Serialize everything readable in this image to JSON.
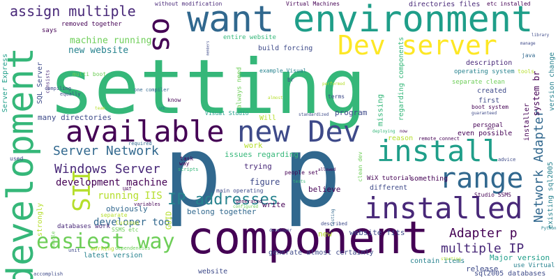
{
  "colors": {
    "dark_purple": "#440154",
    "purple": "#482878",
    "indigo": "#3e4a89",
    "blue": "#31688e",
    "steel": "#26828e",
    "teal": "#1f9e89",
    "green": "#35b779",
    "light_green": "#6ece58",
    "lime": "#b5de2b",
    "yellow": "#fde725"
  },
  "words": [
    {
      "text": "setting",
      "color": "green",
      "rotation": 0
    },
    {
      "text": "p",
      "color": "blue",
      "rotation": 0
    },
    {
      "text": "p",
      "color": "blue",
      "rotation": 0
    },
    {
      "text": "component",
      "color": "dark_purple",
      "rotation": 0
    },
    {
      "text": "want",
      "color": "blue",
      "rotation": 0
    },
    {
      "text": "environment",
      "color": "teal",
      "rotation": 0
    },
    {
      "text": "development",
      "color": "green",
      "rotation": 270
    },
    {
      "text": "available",
      "color": "dark_purple",
      "rotation": 0
    },
    {
      "text": "new Dev",
      "color": "indigo",
      "rotation": 0
    },
    {
      "text": "install",
      "color": "teal",
      "rotation": 0
    },
    {
      "text": "installed",
      "color": "purple",
      "rotation": 0
    },
    {
      "text": "Dev server",
      "color": "yellow",
      "rotation": 0
    },
    {
      "text": "range",
      "color": "blue",
      "rotation": 0
    },
    {
      "text": "os",
      "color": "dark_purple",
      "rotation": 90
    },
    {
      "text": "IIS",
      "color": "lime",
      "rotation": 90
    },
    {
      "text": "easiest way",
      "color": "light_green",
      "rotation": 0
    },
    {
      "text": "assign multiple",
      "color": "purple",
      "rotation": 0
    },
    {
      "text": "Server Network",
      "color": "blue",
      "rotation": 0
    },
    {
      "text": "Windows Server",
      "color": "purple",
      "rotation": 0
    },
    {
      "text": "Network Adapter",
      "color": "blue",
      "rotation": 270
    },
    {
      "text": "IP addresses",
      "color": "steel",
      "rotation": 0
    },
    {
      "text": "Adapter p",
      "color": "dark_purple",
      "rotation": 0
    },
    {
      "text": "multiple IP",
      "color": "purple",
      "rotation": 0
    },
    {
      "text": "development machine",
      "color": "dark_purple",
      "rotation": 0
    },
    {
      "text": "running IIS",
      "color": "lime",
      "rotation": 0
    },
    {
      "text": "developer tools",
      "color": "blue",
      "rotation": 0
    },
    {
      "text": "machine running",
      "color": "light_green",
      "rotation": 0
    },
    {
      "text": "new website",
      "color": "steel",
      "rotation": 0
    },
    {
      "text": "many directories",
      "color": "indigo",
      "rotation": 0
    },
    {
      "text": "issues regarding",
      "color": "green",
      "rotation": 0
    },
    {
      "text": "figure",
      "color": "indigo",
      "rotation": 0
    },
    {
      "text": "believe",
      "color": "dark_purple",
      "rotation": 0
    },
    {
      "text": "write",
      "color": "dark_purple",
      "rotation": 0
    },
    {
      "text": "trying",
      "color": "purple",
      "rotation": 0
    },
    {
      "text": "work",
      "color": "lime",
      "rotation": 0
    },
    {
      "text": "obviously",
      "color": "blue",
      "rotation": 0
    },
    {
      "text": "GUID",
      "color": "lime",
      "rotation": 270
    },
    {
      "text": "belong together",
      "color": "blue",
      "rotation": 0
    },
    {
      "text": "website fits",
      "color": "indigo",
      "rotation": 0
    },
    {
      "text": "Major version",
      "color": "teal",
      "rotation": 0
    },
    {
      "text": "latest version",
      "color": "steel",
      "rotation": 0
    },
    {
      "text": "generate almost certainly",
      "color": "indigo",
      "rotation": 0
    },
    {
      "text": "contain items",
      "color": "steel",
      "rotation": 0
    },
    {
      "text": "sql2005 databases",
      "color": "indigo",
      "rotation": 0
    },
    {
      "text": "use Virtual",
      "color": "steel",
      "rotation": 0
    },
    {
      "text": "release",
      "color": "indigo",
      "rotation": 0
    },
    {
      "text": "website",
      "color": "indigo",
      "rotation": 0
    },
    {
      "text": "new",
      "color": "lime",
      "rotation": 0
    },
    {
      "text": "databases work",
      "color": "purple",
      "rotation": 0
    },
    {
      "text": "SSMS etc",
      "color": "light_green",
      "rotation": 0
    },
    {
      "text": "working",
      "color": "lime",
      "rotation": 0
    },
    {
      "text": "dependencies",
      "color": "light_green",
      "rotation": 0
    },
    {
      "text": "strongly",
      "color": "lime",
      "rotation": 270
    },
    {
      "text": "Curious",
      "color": "lime",
      "rotation": 0
    },
    {
      "text": "separate",
      "color": "lime",
      "rotation": 0
    },
    {
      "text": "accomplish",
      "color": "indigo",
      "rotation": 0
    },
    {
      "text": "unit",
      "color": "indigo",
      "rotation": 0
    },
    {
      "text": "handle",
      "color": "light_green",
      "rotation": 270
    },
    {
      "text": "variables",
      "color": "dark_purple",
      "rotation": 0
    },
    {
      "text": "UAT",
      "color": "dark_purple",
      "rotation": 0
    },
    {
      "text": "way",
      "color": "dark_purple",
      "rotation": 0
    },
    {
      "text": "task",
      "color": "dark_purple",
      "rotation": 0
    },
    {
      "text": "scripts",
      "color": "green",
      "rotation": 0
    },
    {
      "text": "required",
      "color": "blue",
      "rotation": 0
    },
    {
      "text": "used",
      "color": "indigo",
      "rotation": 0
    },
    {
      "text": "Server Express",
      "color": "teal",
      "rotation": 270
    },
    {
      "text": "SQL Server",
      "color": "indigo",
      "rotation": 270
    },
    {
      "text": "consists",
      "color": "purple",
      "rotation": 270
    },
    {
      "text": "compiling",
      "color": "indigo",
      "rotation": 0
    },
    {
      "text": "equally",
      "color": "indigo",
      "rotation": 0
    },
    {
      "text": "multi boot",
      "color": "light_green",
      "rotation": 0
    },
    {
      "text": "says",
      "color": "dark_purple",
      "rotation": 0
    },
    {
      "text": "removed together",
      "color": "dark_purple",
      "rotation": 0
    },
    {
      "text": "without modification",
      "color": "purple",
      "rotation": 0
    },
    {
      "text": "members",
      "color": "indigo",
      "rotation": 270
    },
    {
      "text": "always need",
      "color": "light_green",
      "rotation": 270
    },
    {
      "text": "entire website",
      "color": "green",
      "rotation": 0
    },
    {
      "text": "build forcing",
      "color": "indigo",
      "rotation": 0
    },
    {
      "text": "Virtual Machines",
      "color": "dark_purple",
      "rotation": 0
    },
    {
      "text": "directories files",
      "color": "purple",
      "rotation": 0
    },
    {
      "text": "etc installed",
      "color": "dark_purple",
      "rotation": 0
    },
    {
      "text": "regarding components",
      "color": "green",
      "rotation": 270
    },
    {
      "text": "description",
      "color": "purple",
      "rotation": 0
    },
    {
      "text": "operating system",
      "color": "steel",
      "rotation": 0
    },
    {
      "text": "separate clean",
      "color": "light_green",
      "rotation": 0
    },
    {
      "text": "created",
      "color": "indigo",
      "rotation": 0
    },
    {
      "text": "tools",
      "color": "lime",
      "rotation": 0
    },
    {
      "text": "java",
      "color": "blue",
      "rotation": 0
    },
    {
      "text": "manage",
      "color": "indigo",
      "rotation": 0
    },
    {
      "text": "library",
      "color": "indigo",
      "rotation": 0
    },
    {
      "text": "version change",
      "color": "steel",
      "rotation": 270
    },
    {
      "text": "system br",
      "color": "dark_purple",
      "rotation": 270
    },
    {
      "text": "first",
      "color": "indigo",
      "rotation": 0
    },
    {
      "text": "boot system",
      "color": "dark_purple",
      "rotation": 0
    },
    {
      "text": "guaranteed",
      "color": "indigo",
      "rotation": 0
    },
    {
      "text": "installer",
      "color": "dark_purple",
      "rotation": 270
    },
    {
      "text": "personal",
      "color": "dark_purple",
      "rotation": 0
    },
    {
      "text": "ant",
      "color": "dark_purple",
      "rotation": 0
    },
    {
      "text": "even possible",
      "color": "dark_purple",
      "rotation": 0
    },
    {
      "text": "reason",
      "color": "lime",
      "rotation": 0
    },
    {
      "text": "remote connect",
      "color": "dark_purple",
      "rotation": 0
    },
    {
      "text": "advice",
      "color": "indigo",
      "rotation": 0
    },
    {
      "text": "existing sql2005",
      "color": "steel",
      "rotation": 270
    },
    {
      "text": "something",
      "color": "dark_purple",
      "rotation": 0
    },
    {
      "text": "different",
      "color": "indigo",
      "rotation": 0
    },
    {
      "text": "WiX tutorial",
      "color": "dark_purple",
      "rotation": 0
    },
    {
      "text": "Studio SSMS",
      "color": "dark_purple",
      "rotation": 0
    },
    {
      "text": "Python",
      "color": "steel",
      "rotation": 0
    },
    {
      "text": "example Visual",
      "color": "steel",
      "rotation": 0
    },
    {
      "text": "br",
      "color": "indigo",
      "rotation": 0
    },
    {
      "text": "terms",
      "color": "indigo",
      "rotation": 0
    },
    {
      "text": "missing",
      "color": "green",
      "rotation": 270
    },
    {
      "text": "program",
      "color": "indigo",
      "rotation": 0
    },
    {
      "text": "Will",
      "color": "lime",
      "rotation": 0
    },
    {
      "text": "Visual Studio",
      "color": "teal",
      "rotation": 0
    },
    {
      "text": "standardized",
      "color": "indigo",
      "rotation": 0
    },
    {
      "text": "almost",
      "color": "lime",
      "rotation": 0
    },
    {
      "text": "performed",
      "color": "lime",
      "rotation": 0
    },
    {
      "text": "one compiler",
      "color": "blue",
      "rotation": 0
    },
    {
      "text": "know",
      "color": "dark_purple",
      "rotation": 0
    },
    {
      "text": "us",
      "color": "steel",
      "rotation": 0
    },
    {
      "text": "team",
      "color": "lime",
      "rotation": 0
    },
    {
      "text": "clean dev",
      "color": "light_green",
      "rotation": 270
    },
    {
      "text": "deploying",
      "color": "green",
      "rotation": 0
    },
    {
      "text": "now",
      "color": "dark_purple",
      "rotation": 0
    },
    {
      "text": "people set",
      "color": "dark_purple",
      "rotation": 0
    },
    {
      "text": "tests",
      "color": "green",
      "rotation": 0
    },
    {
      "text": "allowed",
      "color": "dark_purple",
      "rotation": 0
    },
    {
      "text": "main operating",
      "color": "indigo",
      "rotation": 0
    },
    {
      "text": "generated",
      "color": "dark_purple",
      "rotation": 0
    },
    {
      "text": "configured",
      "color": "light_green",
      "rotation": 0
    },
    {
      "text": "described",
      "color": "indigo",
      "rotation": 0
    },
    {
      "text": "testing",
      "color": "blue",
      "rotation": 270
    },
    {
      "text": "developer",
      "color": "indigo",
      "rotation": 0
    },
    {
      "text": "starting",
      "color": "lime",
      "rotation": 0
    }
  ]
}
